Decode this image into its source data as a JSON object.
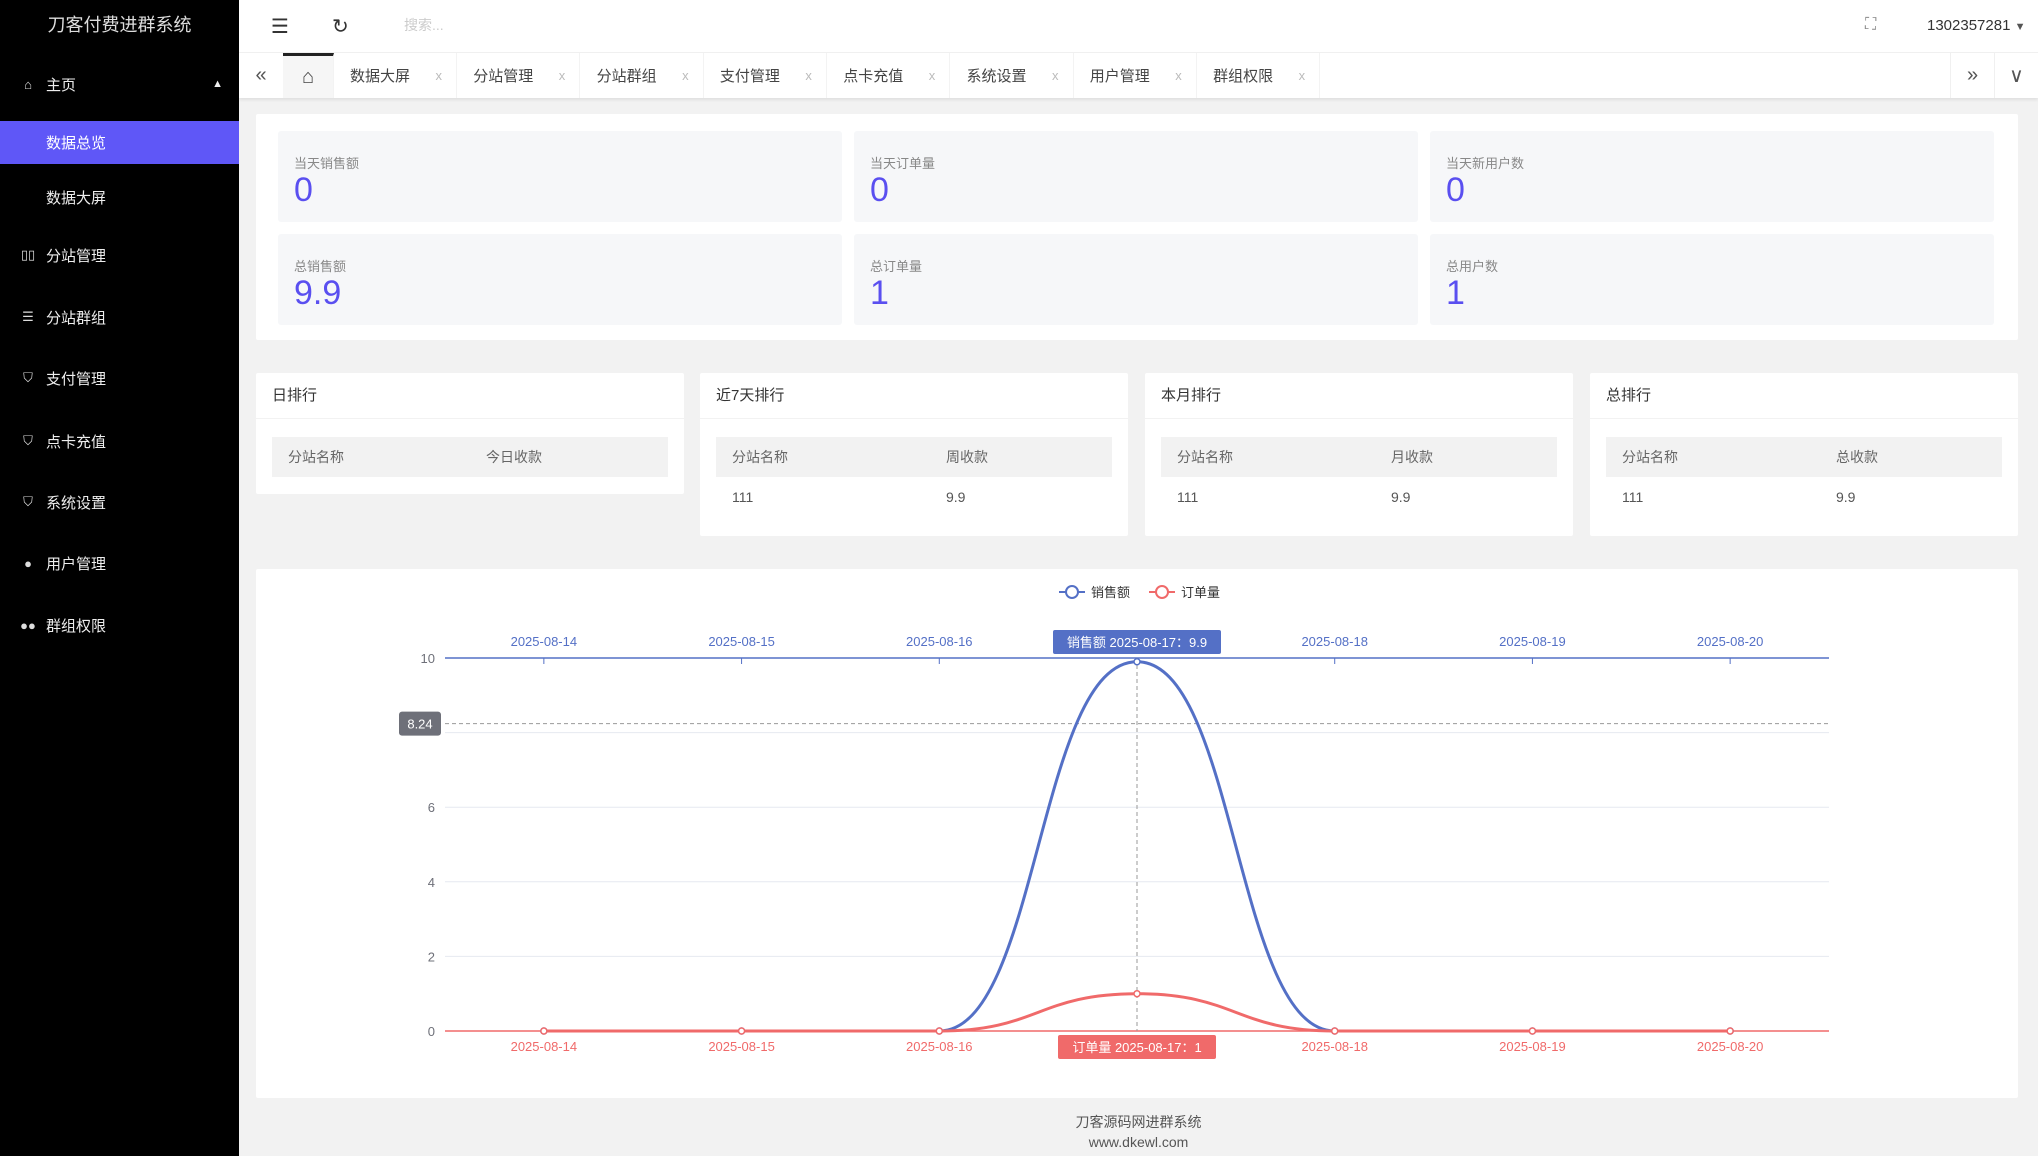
{
  "app_title": "刀客付费进群系统",
  "sidebar": {
    "items": [
      {
        "label": "主页",
        "icon": "home-icon"
      },
      {
        "label": "数据总览",
        "active": true
      },
      {
        "label": "数据大屏"
      },
      {
        "label": "分站管理",
        "icon": "columns-icon"
      },
      {
        "label": "分站群组",
        "icon": "sliders-icon"
      },
      {
        "label": "支付管理",
        "icon": "shield-icon"
      },
      {
        "label": "点卡充值",
        "icon": "shield-icon"
      },
      {
        "label": "系统设置",
        "icon": "shield-icon"
      },
      {
        "label": "用户管理",
        "icon": "user-icon"
      },
      {
        "label": "群组权限",
        "icon": "users-icon"
      }
    ]
  },
  "header": {
    "search_placeholder": "搜索...",
    "username": "1302357281"
  },
  "tabs": [
    "数据大屏",
    "分站管理",
    "分站群组",
    "支付管理",
    "点卡充值",
    "系统设置",
    "用户管理",
    "群组权限"
  ],
  "tab_close": "x",
  "stats": [
    {
      "label": "当天销售额",
      "value": "0"
    },
    {
      "label": "当天订单量",
      "value": "0"
    },
    {
      "label": "当天新用户数",
      "value": "0"
    },
    {
      "label": "总销售额",
      "value": "9.9"
    },
    {
      "label": "总订单量",
      "value": "1"
    },
    {
      "label": "总用户数",
      "value": "1"
    }
  ],
  "rankings": [
    {
      "title": "日排行",
      "col1": "分站名称",
      "col2": "今日收款",
      "rows": []
    },
    {
      "title": "近7天排行",
      "col1": "分站名称",
      "col2": "周收款",
      "rows": [
        [
          "111",
          "9.9"
        ]
      ]
    },
    {
      "title": "本月排行",
      "col1": "分站名称",
      "col2": "月收款",
      "rows": [
        [
          "111",
          "9.9"
        ]
      ]
    },
    {
      "title": "总排行",
      "col1": "分站名称",
      "col2": "总收款",
      "rows": [
        [
          "111",
          "9.9"
        ]
      ]
    }
  ],
  "chart_data": {
    "type": "line",
    "smooth": true,
    "categories": [
      "2025-08-14",
      "2025-08-15",
      "2025-08-16",
      "2025-08-17",
      "2025-08-18",
      "2025-08-19",
      "2025-08-20"
    ],
    "series": [
      {
        "name": "销售额",
        "values": [
          0,
          0,
          0,
          9.9,
          0,
          0,
          0
        ],
        "color": "#5470c6"
      },
      {
        "name": "订单量",
        "values": [
          0,
          0,
          0,
          1,
          0,
          0,
          0
        ],
        "color": "#f06a6a"
      }
    ],
    "ylim": [
      0,
      10
    ],
    "yticks": [
      "0",
      "2",
      "4",
      "6",
      "8",
      "10"
    ],
    "legend": "top-center",
    "grid": true,
    "pointer": {
      "y_label": "8.24",
      "top_label": "销售额  2025-08-17：9.9",
      "bottom_label": "订单量  2025-08-17：1"
    }
  },
  "footer": {
    "line1": "刀客源码网进群系统",
    "line2": "www.dkewl.com"
  }
}
